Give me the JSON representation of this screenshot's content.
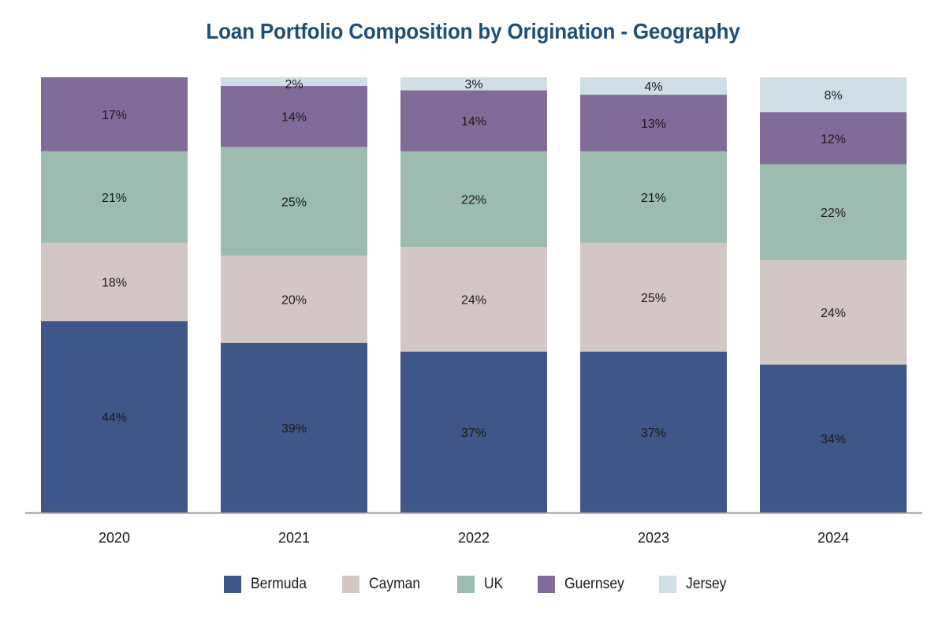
{
  "chart_data": {
    "type": "bar",
    "stacked": true,
    "percent_stacked": true,
    "title": "Loan Portfolio Composition by Origination - Geography",
    "xlabel": "",
    "ylabel": "",
    "ylim": [
      0,
      100
    ],
    "grid": false,
    "legend_position": "bottom",
    "categories": [
      "2020",
      "2021",
      "2022",
      "2023",
      "2024"
    ],
    "series": [
      {
        "name": "Bermuda",
        "color": "#3f5688",
        "values": [
          44,
          39,
          37,
          37,
          34
        ],
        "labels": [
          "44%",
          "39%",
          "37%",
          "37%",
          "34%"
        ]
      },
      {
        "name": "Cayman",
        "color": "#d3c7c6",
        "values": [
          18,
          20,
          24,
          25,
          24
        ],
        "labels": [
          "18%",
          "20%",
          "24%",
          "25%",
          "24%"
        ]
      },
      {
        "name": "UK",
        "color": "#9dbbae",
        "values": [
          21,
          25,
          22,
          21,
          22
        ],
        "labels": [
          "21%",
          "25%",
          "22%",
          "21%",
          "22%"
        ]
      },
      {
        "name": "Guernsey",
        "color": "#806b99",
        "values": [
          17,
          14,
          14,
          13,
          12
        ],
        "labels": [
          "17%",
          "14%",
          "14%",
          "13%",
          "12%"
        ]
      },
      {
        "name": "Jersey",
        "color": "#d0dfe6",
        "values": [
          0,
          2,
          3,
          4,
          8
        ],
        "labels": [
          "",
          "2%",
          "3%",
          "4%",
          "8%"
        ]
      }
    ]
  }
}
